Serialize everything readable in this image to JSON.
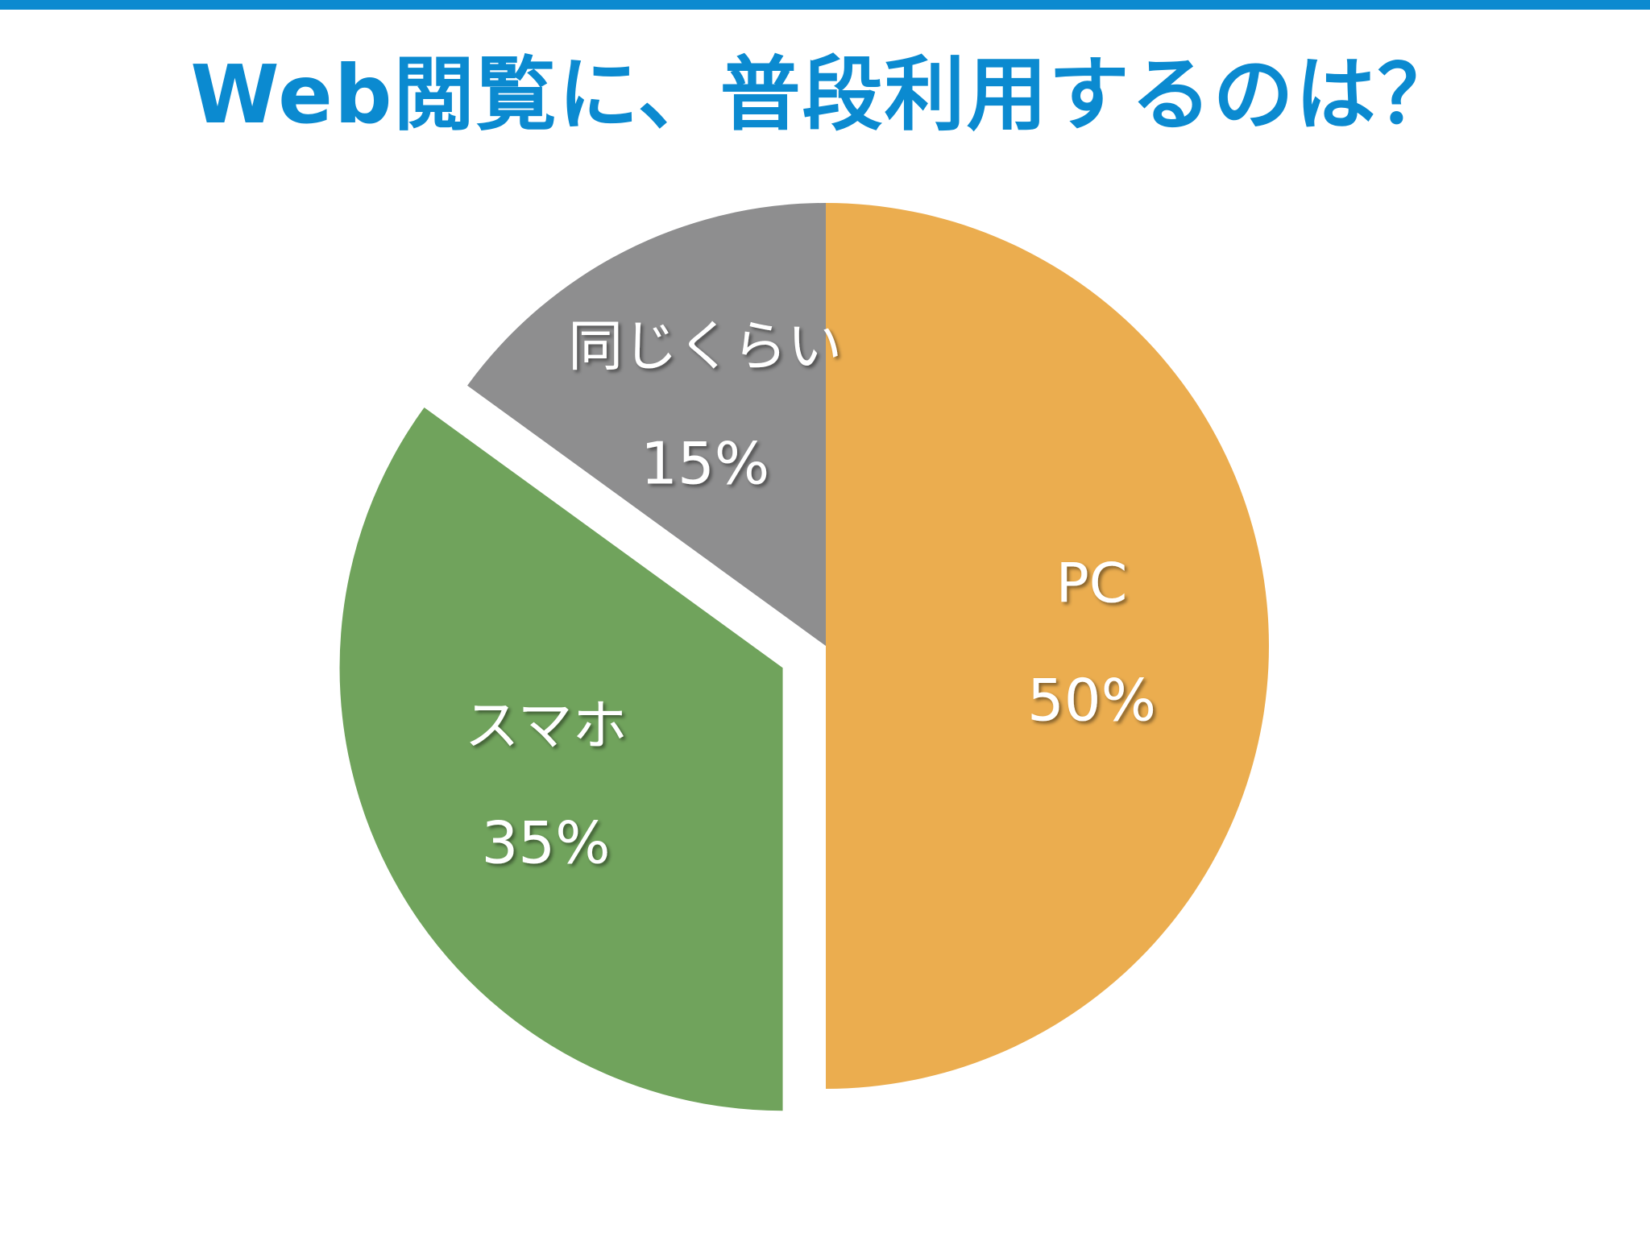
{
  "colors": {
    "accent": "#0b8ad0",
    "background": "#ffffff"
  },
  "chart_data": {
    "type": "pie",
    "title": "Web閲覧に、普段利用するのは？",
    "start_angle_deg": 0,
    "direction": "clockwise",
    "slices": [
      {
        "label": "PC",
        "value": 50,
        "value_label": "50%",
        "color": "#ebad4f",
        "exploded": false
      },
      {
        "label": "スマホ",
        "value": 35,
        "value_label": "35%",
        "color": "#70a35c",
        "exploded": true
      },
      {
        "label": "同じくらい",
        "value": 15,
        "value_label": "15%",
        "color": "#8e8e8f",
        "exploded": false
      }
    ],
    "legend": "none",
    "grid": false
  }
}
